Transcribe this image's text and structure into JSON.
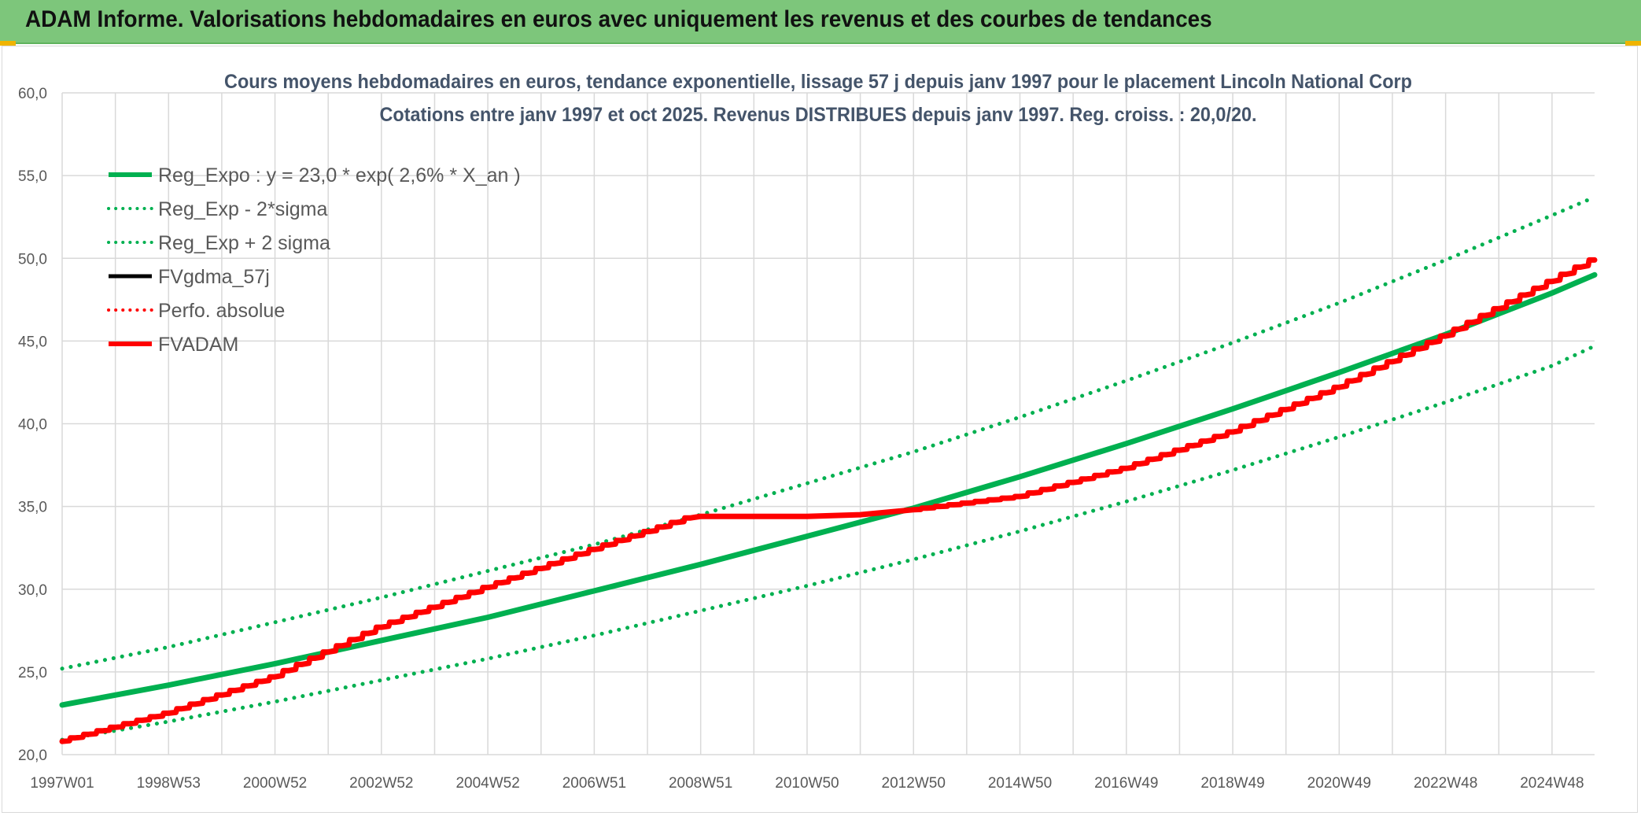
{
  "header": {
    "title": "ADAM Informe. Valorisations hebdomadaires en euros avec uniquement les revenus et des courbes de tendances"
  },
  "colors": {
    "banner": "#7dc67b",
    "reg_expo": "#00b050",
    "fvadam": "#ff0000",
    "fvgdma": "#000000",
    "perfo": "#ff0000",
    "grid": "#d9d9d9",
    "axis_text": "#595959",
    "title_text": "#44546a"
  },
  "chart_data": {
    "type": "line",
    "title": "Cours moyens hebdomadaires en euros, tendance exponentielle, lissage 57 j depuis janv 1997 pour le placement Lincoln National Corp",
    "subtitle": "Cotations entre janv 1997 et oct 2025. Revenus DISTRIBUES depuis janv 1997. Reg. croiss. : 20,0/20.",
    "xlabel": "",
    "ylabel": "",
    "ylim": [
      20,
      60
    ],
    "yticks": [
      "20,0",
      "25,0",
      "30,0",
      "35,0",
      "40,0",
      "45,0",
      "50,0",
      "55,0",
      "60,0"
    ],
    "xlim": [
      1997.0,
      2025.8
    ],
    "xticks": [
      {
        "label": "1997W01",
        "x": 1997.0
      },
      {
        "label": "1998W53",
        "x": 1999.0
      },
      {
        "label": "2000W52",
        "x": 2001.0
      },
      {
        "label": "2002W52",
        "x": 2003.0
      },
      {
        "label": "2004W52",
        "x": 2005.0
      },
      {
        "label": "2006W51",
        "x": 2007.0
      },
      {
        "label": "2008W51",
        "x": 2009.0
      },
      {
        "label": "2010W50",
        "x": 2011.0
      },
      {
        "label": "2012W50",
        "x": 2013.0
      },
      {
        "label": "2014W50",
        "x": 2015.0
      },
      {
        "label": "2016W49",
        "x": 2017.0
      },
      {
        "label": "2018W49",
        "x": 2019.0
      },
      {
        "label": "2020W49",
        "x": 2021.0
      },
      {
        "label": "2022W48",
        "x": 2023.0
      },
      {
        "label": "2024W48",
        "x": 2025.0
      }
    ],
    "grid": true,
    "legend_position": "top-left",
    "series": [
      {
        "name": "Reg_Expo : y = 23,0 * exp( 2,6% *  X_an )",
        "style": "solid-thick",
        "color": "#00b050",
        "x": [
          1997.0,
          1999.0,
          2001.0,
          2003.0,
          2005.0,
          2007.0,
          2009.0,
          2011.0,
          2013.0,
          2015.0,
          2017.0,
          2019.0,
          2021.0,
          2023.0,
          2025.0,
          2025.8
        ],
        "y": [
          23.0,
          24.2,
          25.5,
          26.9,
          28.3,
          29.9,
          31.5,
          33.2,
          34.9,
          36.8,
          38.8,
          40.9,
          43.1,
          45.4,
          47.9,
          49.0
        ]
      },
      {
        "name": "Reg_Exp - 2*sigma",
        "style": "dotted",
        "color": "#00b050",
        "x": [
          1997.0,
          1999.0,
          2001.0,
          2003.0,
          2005.0,
          2007.0,
          2009.0,
          2011.0,
          2013.0,
          2015.0,
          2017.0,
          2019.0,
          2021.0,
          2023.0,
          2025.0,
          2025.8
        ],
        "y": [
          20.9,
          22.0,
          23.2,
          24.5,
          25.8,
          27.2,
          28.7,
          30.2,
          31.8,
          33.5,
          35.3,
          37.2,
          39.2,
          41.3,
          43.5,
          44.7
        ]
      },
      {
        "name": "Reg_Exp + 2 sigma",
        "style": "dotted",
        "color": "#00b050",
        "x": [
          1997.0,
          1999.0,
          2001.0,
          2003.0,
          2005.0,
          2007.0,
          2009.0,
          2011.0,
          2013.0,
          2015.0,
          2017.0,
          2019.0,
          2021.0,
          2023.0,
          2025.0,
          2025.8
        ],
        "y": [
          25.2,
          26.5,
          28.0,
          29.5,
          31.1,
          32.7,
          34.5,
          36.4,
          38.3,
          40.4,
          42.6,
          44.9,
          47.3,
          49.9,
          52.6,
          53.7
        ]
      },
      {
        "name": "FVgdma_57j",
        "style": "solid",
        "color": "#000000",
        "x": [],
        "y": []
      },
      {
        "name": "Perfo. absolue",
        "style": "dotted",
        "color": "#ff0000",
        "x": [],
        "y": []
      },
      {
        "name": "FVADAM",
        "style": "solid-thick",
        "color": "#ff0000",
        "x": [
          1997.0,
          1999.0,
          2001.0,
          2003.0,
          2005.0,
          2007.0,
          2008.8,
          2009.0,
          2011.0,
          2012.0,
          2013.0,
          2015.0,
          2017.0,
          2019.0,
          2021.0,
          2023.0,
          2025.0,
          2025.8
        ],
        "y": [
          20.8,
          22.5,
          24.7,
          27.7,
          30.1,
          32.4,
          34.3,
          34.4,
          34.4,
          34.5,
          34.8,
          35.6,
          37.3,
          39.5,
          42.2,
          45.3,
          48.6,
          49.9
        ]
      }
    ]
  }
}
